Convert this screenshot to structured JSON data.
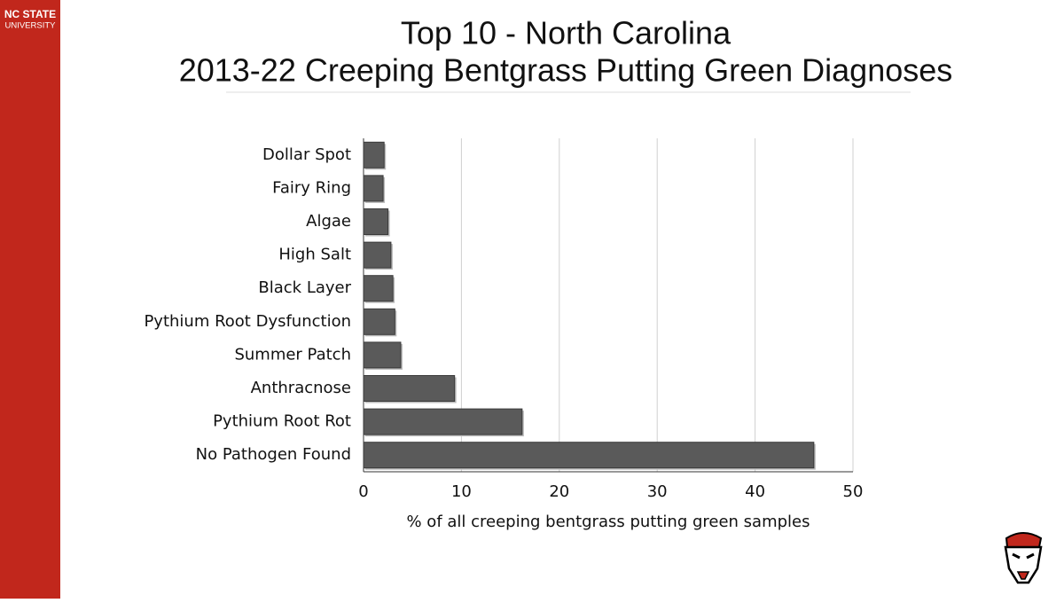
{
  "branding": {
    "name": "NC STATE",
    "subtitle": "UNIVERSITY"
  },
  "chart_data": {
    "type": "barh",
    "title": "Top 10 - North Carolina",
    "subtitle": "2013-22 Creeping Bentgrass Putting Green Diagnoses",
    "x_label": "% of all creeping bentgrass putting green samples",
    "categories": [
      "Dollar Spot",
      "Fairy Ring",
      "Algae",
      "High Salt",
      "Black Layer",
      "Pythium Root Dysfunction",
      "Summer Patch",
      "Anthracnose",
      "Pythium Root Rot",
      "No Pathogen Found"
    ],
    "values": [
      2.1,
      2.0,
      2.5,
      2.8,
      3.0,
      3.2,
      3.8,
      9.3,
      16.2,
      46.0
    ],
    "color": "#5a5a5a",
    "xlim": [
      0,
      50
    ],
    "xticks": [
      0,
      10,
      20,
      30,
      40,
      50
    ],
    "grid": true
  }
}
